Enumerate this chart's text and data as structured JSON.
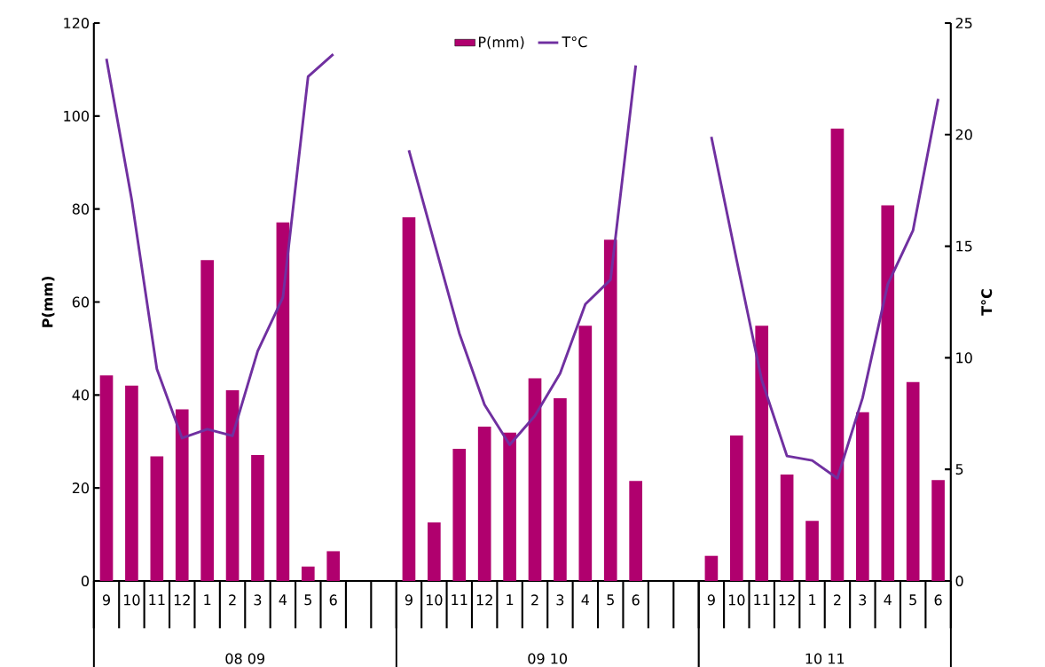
{
  "chart_data": {
    "type": "bar",
    "categories": [
      "9",
      "10",
      "11",
      "12",
      "1",
      "2",
      "3",
      "4",
      "5",
      "6",
      null,
      null,
      "9",
      "10",
      "11",
      "12",
      "1",
      "2",
      "3",
      "4",
      "5",
      "6",
      null,
      null,
      "9",
      "10",
      "11",
      "12",
      "1",
      "2",
      "3",
      "4",
      "5",
      "6"
    ],
    "series": [
      {
        "name": "P(mm)",
        "color": "#b0006e",
        "values": [
          44.2,
          42.0,
          26.8,
          36.9,
          69.0,
          41.0,
          27.1,
          77.1,
          3.1,
          6.4,
          null,
          null,
          78.2,
          12.6,
          28.4,
          33.2,
          31.9,
          43.6,
          39.3,
          54.9,
          73.4,
          21.5,
          null,
          null,
          5.4,
          31.3,
          54.9,
          22.9,
          12.9,
          97.3,
          36.3,
          80.8,
          42.8,
          21.7
        ]
      },
      {
        "name": "T°C",
        "type": "line",
        "axis": "y2",
        "color": "#7030a0",
        "values": [
          23.4,
          17.1,
          9.5,
          6.4,
          6.8,
          6.5,
          10.3,
          12.7,
          22.6,
          23.6,
          null,
          null,
          19.3,
          15.2,
          11.1,
          7.9,
          6.1,
          7.4,
          9.3,
          12.4,
          13.5,
          23.1,
          null,
          null,
          19.9,
          14.4,
          9.0,
          5.6,
          5.4,
          4.6,
          8.2,
          13.3,
          15.7,
          21.6
        ]
      }
    ],
    "ylabel": "P(mm)",
    "y2label": "T°C",
    "ylim": [
      0,
      120
    ],
    "yticks": [
      0,
      20,
      40,
      60,
      80,
      100,
      120
    ],
    "y2lim": [
      0,
      25
    ],
    "y2ticks": [
      0,
      5,
      10,
      15,
      20,
      25
    ],
    "annotations": [
      "08 09",
      "09 10",
      "10 11"
    ],
    "legend": "top",
    "grid": false,
    "marker": "none",
    "line_style": "solid"
  }
}
